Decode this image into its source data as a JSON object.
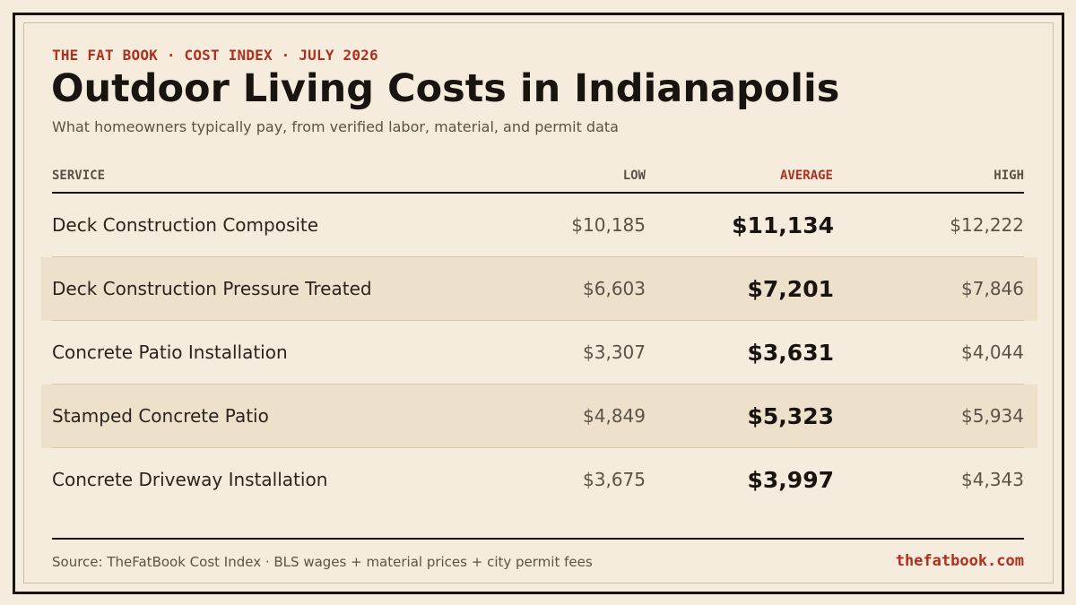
{
  "header": {
    "kicker": "THE FAT BOOK · COST INDEX · JULY 2026",
    "title": "Outdoor Living Costs in Indianapolis",
    "subtitle": "What homeowners typically pay, from verified labor, material, and permit data"
  },
  "table": {
    "columns": {
      "service": "SERVICE",
      "low": "LOW",
      "average": "AVERAGE",
      "high": "HIGH"
    },
    "rows": [
      {
        "service": "Deck Construction Composite",
        "low": "$10,185",
        "average": "$11,134",
        "high": "$12,222"
      },
      {
        "service": "Deck Construction Pressure Treated",
        "low": "$6,603",
        "average": "$7,201",
        "high": "$7,846"
      },
      {
        "service": "Concrete Patio Installation",
        "low": "$3,307",
        "average": "$3,631",
        "high": "$4,044"
      },
      {
        "service": "Stamped Concrete Patio",
        "low": "$4,849",
        "average": "$5,323",
        "high": "$5,934"
      },
      {
        "service": "Concrete Driveway Installation",
        "low": "$3,675",
        "average": "$3,997",
        "high": "$4,343"
      }
    ]
  },
  "footer": {
    "source": "Source: TheFatBook Cost Index · BLS wages + material prices + city permit fees",
    "brand": "thefatbook.com"
  },
  "colors": {
    "background": "#f5ecde",
    "accent": "#b0301d",
    "ink": "#1a1410",
    "row_shade": "#ede1cc"
  }
}
